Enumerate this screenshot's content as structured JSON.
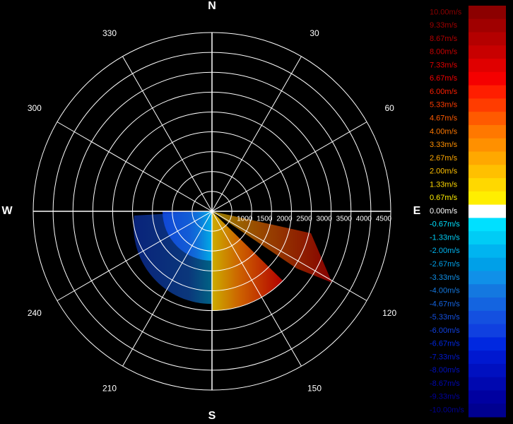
{
  "compass": [
    "N",
    "E",
    "S",
    "W"
  ],
  "azimuth_labels": [
    "30",
    "60",
    "120",
    "150",
    "210",
    "240",
    "300",
    "330"
  ],
  "range_labels": [
    "1000",
    "1500",
    "2000",
    "2500",
    "3000",
    "3500",
    "4000",
    "4500"
  ],
  "legend": [
    {
      "label": "10.00m/s",
      "color": "#8c0000"
    },
    {
      "label": "9.33m/s",
      "color": "#a00000"
    },
    {
      "label": "8.67m/s",
      "color": "#b40000"
    },
    {
      "label": "8.00m/s",
      "color": "#c80000"
    },
    {
      "label": "7.33m/s",
      "color": "#e00000"
    },
    {
      "label": "6.67m/s",
      "color": "#f50000"
    },
    {
      "label": "6.00m/s",
      "color": "#ff1e00"
    },
    {
      "label": "5.33m/s",
      "color": "#ff3c00"
    },
    {
      "label": "4.67m/s",
      "color": "#ff5a00"
    },
    {
      "label": "4.00m/s",
      "color": "#ff7800"
    },
    {
      "label": "3.33m/s",
      "color": "#ff9000"
    },
    {
      "label": "2.67m/s",
      "color": "#ffa800"
    },
    {
      "label": "2.00m/s",
      "color": "#ffc000"
    },
    {
      "label": "1.33m/s",
      "color": "#ffd800"
    },
    {
      "label": "0.67m/s",
      "color": "#ffee00"
    },
    {
      "label": "0.00m/s",
      "color": "#ffffff"
    },
    {
      "label": "-0.67m/s",
      "color": "#00e0ff"
    },
    {
      "label": "-1.33m/s",
      "color": "#00ccf5"
    },
    {
      "label": "-2.00m/s",
      "color": "#00b4f0"
    },
    {
      "label": "-2.67m/s",
      "color": "#00a0e8"
    },
    {
      "label": "-3.33m/s",
      "color": "#1090e8"
    },
    {
      "label": "-4.00m/s",
      "color": "#1478e0"
    },
    {
      "label": "-4.67m/s",
      "color": "#1464e0"
    },
    {
      "label": "-5.33m/s",
      "color": "#1450e0"
    },
    {
      "label": "-6.00m/s",
      "color": "#1040e0"
    },
    {
      "label": "-6.67m/s",
      "color": "#0028e0"
    },
    {
      "label": "-7.33m/s",
      "color": "#0018d0"
    },
    {
      "label": "-8.00m/s",
      "color": "#0010c0"
    },
    {
      "label": "-8.67m/s",
      "color": "#0008b0"
    },
    {
      "label": "-9.33m/s",
      "color": "#0000a0"
    },
    {
      "label": "-10.00m/s",
      "color": "#000090"
    }
  ]
}
